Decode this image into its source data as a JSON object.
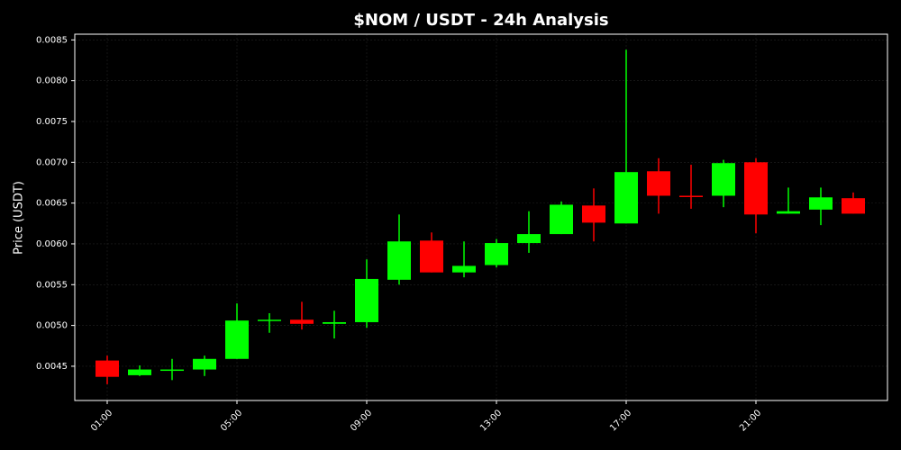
{
  "chart_data": {
    "type": "candlestick",
    "title": "$NOM / USDT - 24h Analysis",
    "y_label": "Price (USDT)",
    "categories": [
      "01:00",
      null,
      null,
      null,
      "05:00",
      null,
      null,
      null,
      "09:00",
      null,
      null,
      null,
      "13:00",
      null,
      null,
      null,
      "17:00",
      null,
      null,
      null,
      "21:00",
      null,
      null,
      null
    ],
    "open": [
      0.00457,
      0.00439,
      0.00445,
      0.00446,
      0.00459,
      0.00506,
      0.00507,
      0.00502,
      0.00504,
      0.00556,
      0.00604,
      0.00565,
      0.00574,
      0.00601,
      0.00612,
      0.00647,
      0.00625,
      0.00689,
      0.00659,
      0.00659,
      0.007,
      0.00637,
      0.00642,
      0.00656
    ],
    "high": [
      0.00463,
      0.00451,
      0.00459,
      0.00463,
      0.00527,
      0.00515,
      0.00529,
      0.00518,
      0.00581,
      0.00636,
      0.00614,
      0.00603,
      0.00606,
      0.0064,
      0.00652,
      0.00668,
      0.00838,
      0.00705,
      0.00697,
      0.00703,
      0.00705,
      0.00669,
      0.00669,
      0.00663
    ],
    "low": [
      0.00428,
      0.00438,
      0.00433,
      0.00438,
      0.00459,
      0.00491,
      0.00495,
      0.00484,
      0.00497,
      0.0055,
      0.00565,
      0.00559,
      0.00571,
      0.00589,
      0.00612,
      0.00603,
      0.00625,
      0.00637,
      0.00643,
      0.00645,
      0.00613,
      0.00637,
      0.00623,
      0.00637
    ],
    "close": [
      0.00437,
      0.00446,
      0.00446,
      0.00459,
      0.00506,
      0.00507,
      0.00502,
      0.00504,
      0.00557,
      0.00603,
      0.00565,
      0.00573,
      0.00601,
      0.00612,
      0.00648,
      0.00626,
      0.00688,
      0.00659,
      0.00658,
      0.00699,
      0.00636,
      0.0064,
      0.00657,
      0.00637
    ],
    "up_color": "#00ff00",
    "down_color": "#ff0000",
    "ylim": [
      0.00408,
      0.00857
    ],
    "yticks": [
      0.0045,
      {
        "value": 0.005,
        "label": "0.0050"
      },
      0.0055,
      {
        "value": 0.006,
        "label": "0.0060"
      },
      0.0065,
      {
        "value": 0.007,
        "label": "0.0070"
      },
      0.0075,
      {
        "value": 0.008,
        "label": "0.0080"
      },
      0.0085
    ],
    "grid": true
  }
}
